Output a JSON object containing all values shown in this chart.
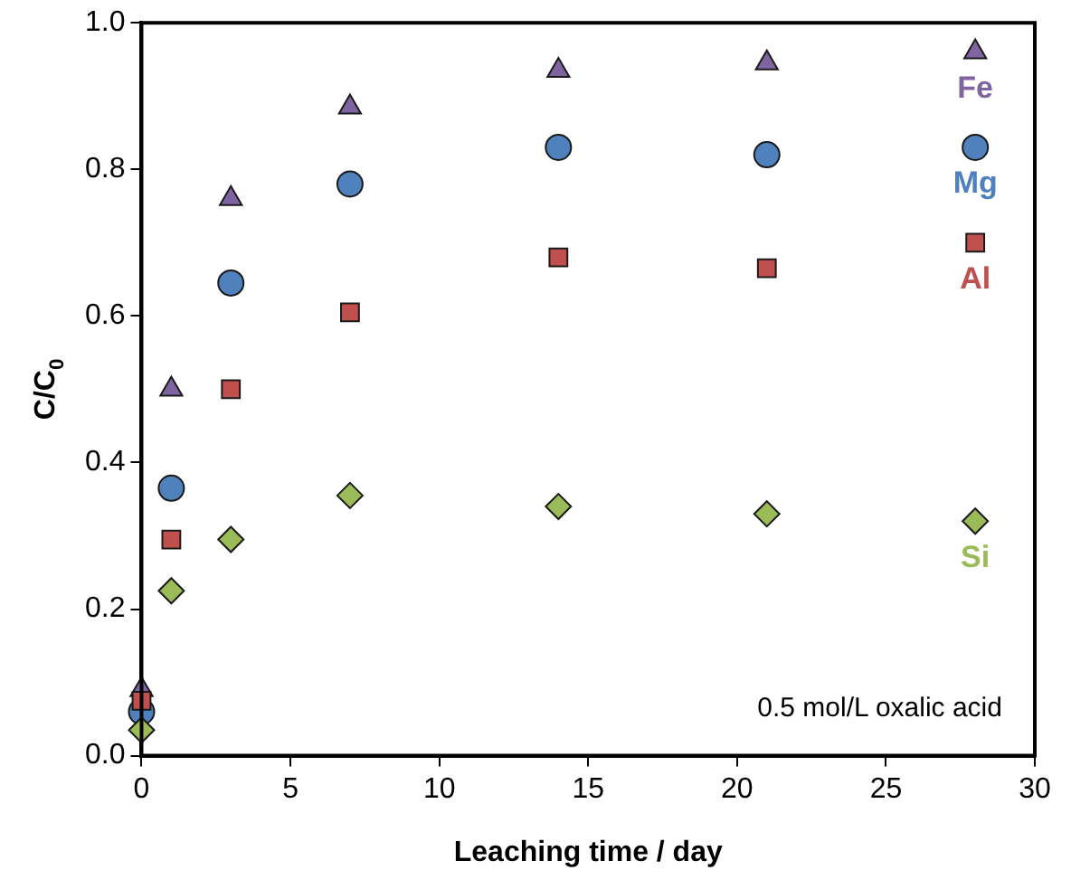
{
  "chart_data": {
    "type": "scatter",
    "xlabel": "Leaching time / day",
    "ylabel": "C/C$_{0}$",
    "annotations": [
      "0.5 mol/L oxalic acid"
    ],
    "x": [
      0,
      1,
      3,
      7,
      14,
      21,
      28
    ],
    "xlim": [
      0,
      30
    ],
    "xticks": [
      0,
      5,
      10,
      15,
      20,
      25,
      30
    ],
    "ylim": [
      0,
      1
    ],
    "yticks": [
      {
        "value": 0,
        "label": "0.0"
      },
      {
        "value": 0.2,
        "label": "0.2"
      },
      {
        "value": 0.4,
        "label": "0.4"
      },
      {
        "value": 0.6,
        "label": "0.6"
      },
      {
        "value": 0.8,
        "label": "0.8"
      },
      {
        "value": 1,
        "label": "1.0"
      }
    ],
    "grid": false,
    "legend": false,
    "series": [
      {
        "name": "Fe",
        "color": "#8064a2",
        "marker": "triangle",
        "values": [
          0.09,
          0.5,
          0.76,
          0.885,
          0.935,
          0.945,
          0.96
        ]
      },
      {
        "name": "Mg",
        "color": "#4f81bd",
        "marker": "circle",
        "values": [
          0.06,
          0.365,
          0.645,
          0.78,
          0.83,
          0.82,
          0.83
        ]
      },
      {
        "name": "Al",
        "color": "#c0504d",
        "marker": "square",
        "values": [
          0.075,
          0.295,
          0.5,
          0.605,
          0.68,
          0.665,
          0.7
        ]
      },
      {
        "name": "Si",
        "color": "#9bbb59",
        "marker": "diamond",
        "values": [
          0.035,
          0.225,
          0.295,
          0.355,
          0.34,
          0.33,
          0.32
        ]
      }
    ]
  }
}
